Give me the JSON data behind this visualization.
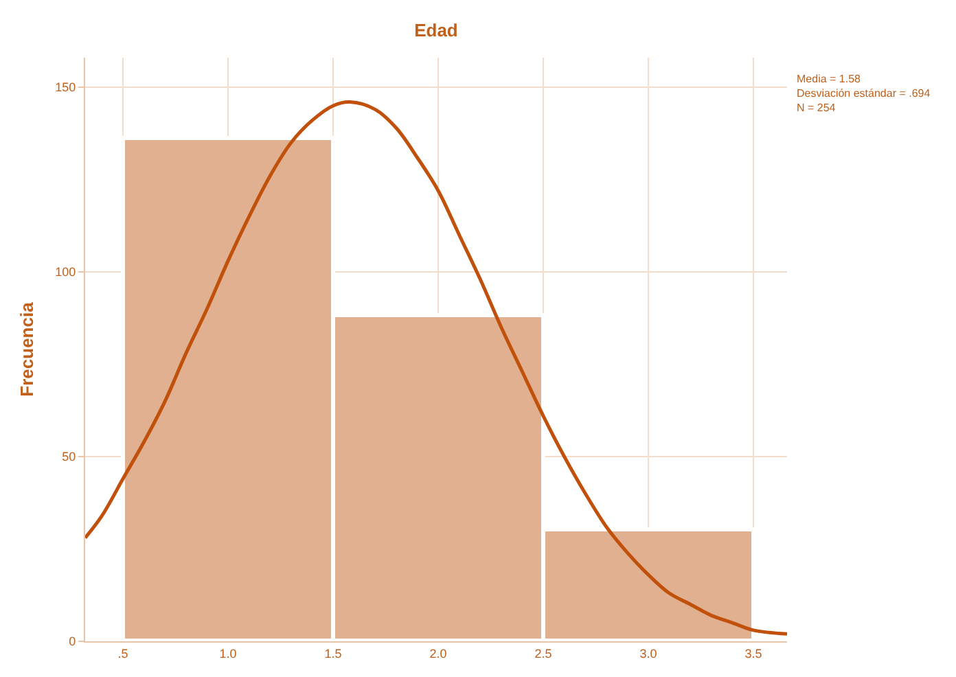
{
  "chart_data": {
    "type": "histogram",
    "title": "Edad",
    "ylabel": "Frecuencia",
    "series": [
      {
        "color": "#e0b090",
        "bins": [
          0.5,
          1.5,
          2.5,
          3.5
        ],
        "values": [
          136,
          88,
          30
        ]
      },
      {
        "type": "line",
        "color": "#c0500a",
        "x": [
          0.32,
          0.4,
          0.5,
          0.6,
          0.7,
          0.8,
          0.9,
          1.0,
          1.1,
          1.2,
          1.3,
          1.4,
          1.5,
          1.58,
          1.7,
          1.8,
          1.9,
          2.0,
          2.1,
          2.2,
          2.3,
          2.4,
          2.5,
          2.6,
          2.7,
          2.8,
          2.9,
          3.0,
          3.1,
          3.2,
          3.3,
          3.4,
          3.5,
          3.66
        ],
        "values": [
          28,
          34,
          44,
          54,
          65,
          78,
          90,
          103,
          115,
          126,
          135,
          141,
          145,
          146,
          144,
          139,
          131,
          122,
          110,
          98,
          85,
          73,
          61,
          50,
          40,
          31,
          24,
          18,
          13,
          10,
          7,
          5,
          3,
          2
        ]
      }
    ],
    "xlim": [
      0.32,
      3.66
    ],
    "ylim": [
      0,
      158
    ],
    "xticks": [
      {
        "value": 0.5,
        "label": ".5"
      },
      {
        "value": 1.0,
        "label": "1.0"
      },
      {
        "value": 1.5,
        "label": "1.5"
      },
      {
        "value": 2.0,
        "label": "2.0"
      },
      {
        "value": 2.5,
        "label": "2.5"
      },
      {
        "value": 3.0,
        "label": "3.0"
      },
      {
        "value": 3.5,
        "label": "3.5"
      }
    ],
    "yticks": [
      0,
      50,
      100,
      150
    ],
    "grid": true,
    "marker": "none",
    "line_style": "solid",
    "annotations": [
      "Media = 1.58",
      "Desviación estándar = .694",
      "N = 254"
    ]
  }
}
